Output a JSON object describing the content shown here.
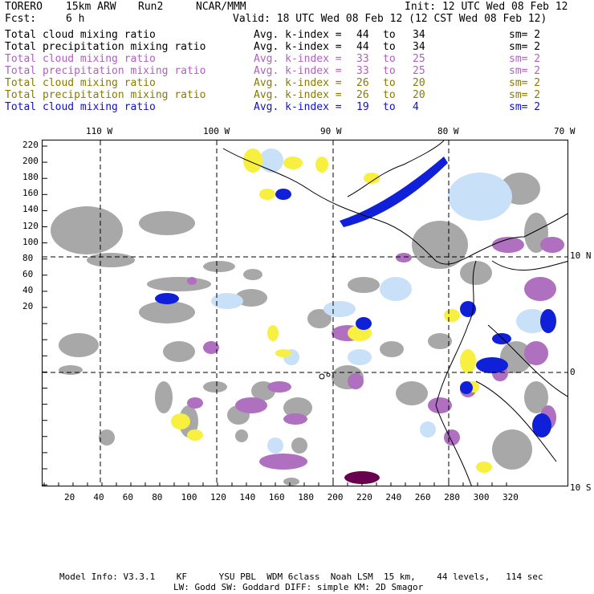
{
  "header": {
    "model": "TORERO",
    "resolution": "15km ARW",
    "run": "Run2",
    "org": "NCAR/MMM",
    "init": "Init: 12 UTC Wed 08 Feb 12",
    "fcst_label": "Fcst:",
    "fcst_value": "6 h",
    "valid": "Valid: 18 UTC Wed 08 Feb 12 (12 CST Wed 08 Feb 12)"
  },
  "legend": [
    {
      "field": "Total cloud mixing ratio",
      "avg": "Avg. k-index =",
      "from": "44",
      "to_word": "to",
      "to": "34",
      "sm": "sm= 2",
      "color": "#000000"
    },
    {
      "field": "Total precipitation mixing ratio",
      "avg": "Avg. k-index =",
      "from": "44",
      "to_word": "to",
      "to": "34",
      "sm": "sm= 2",
      "color": "#000000"
    },
    {
      "field": "Total cloud mixing ratio",
      "avg": "Avg. k-index =",
      "from": "33",
      "to_word": "to",
      "to": "25",
      "sm": "sm= 2",
      "color": "#b060c0"
    },
    {
      "field": "Total precipitation mixing ratio",
      "avg": "Avg. k-index =",
      "from": "33",
      "to_word": "to",
      "to": "25",
      "sm": "sm= 2",
      "color": "#b060c0"
    },
    {
      "field": "Total cloud mixing ratio",
      "avg": "Avg. k-index =",
      "from": "26",
      "to_word": "to",
      "to": "20",
      "sm": "sm= 2",
      "color": "#8a7a00"
    },
    {
      "field": "Total precipitation mixing ratio",
      "avg": "Avg. k-index =",
      "from": "26",
      "to_word": "to",
      "to": "20",
      "sm": "sm= 2",
      "color": "#8a7a00"
    },
    {
      "field": "Total cloud mixing ratio",
      "avg": "Avg. k-index =",
      "from": "19",
      "to_word": "to",
      "to": "4",
      "sm": "sm= 2",
      "color": "#1010d0"
    }
  ],
  "map": {
    "top_longitude_labels": [
      "110 W",
      "100 W",
      "90 W",
      "80 W",
      "70 W"
    ],
    "right_latitude_labels": [
      "10 N",
      "0",
      "10 S"
    ],
    "y_ticks": [
      "220",
      "200",
      "180",
      "160",
      "140",
      "120",
      "100",
      "80",
      "60",
      "40",
      "20"
    ],
    "x_ticks": [
      "20",
      "40",
      "60",
      "80",
      "100",
      "120",
      "140",
      "160",
      "180",
      "200",
      "220",
      "240",
      "260",
      "280",
      "300",
      "320"
    ],
    "colors": {
      "gray": "#a8a8a8",
      "light_blue": "#c8e0f8",
      "blue": "#1020d8",
      "purple": "#b070c0",
      "dark_purple": "#6a0050",
      "yellow": "#f8f040"
    }
  },
  "footer": {
    "line1": "Model Info: V3.3.1    KF      YSU PBL  WDM 6class  Noah LSM  15 km,    44 levels,   114 sec",
    "line2": "LW: Godd SW: Goddard DIFF: simple KM: 2D Smagor"
  }
}
